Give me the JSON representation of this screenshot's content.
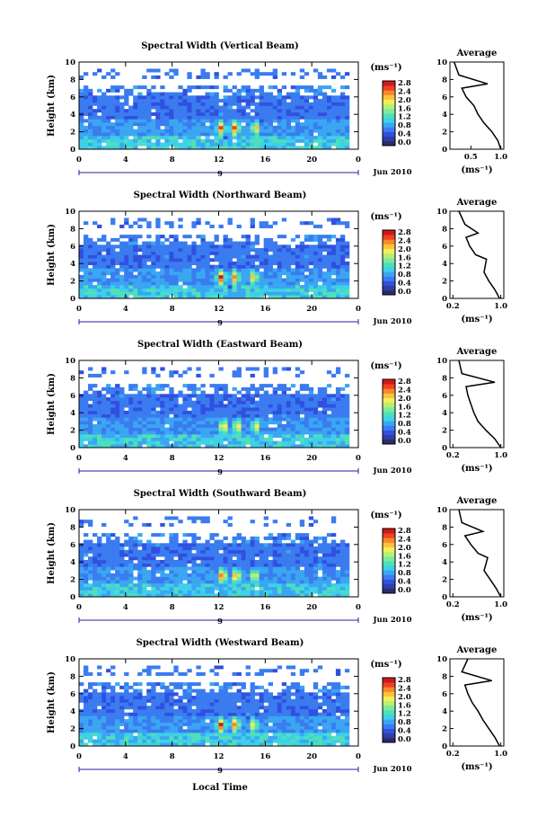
{
  "colors": {
    "colorbar": [
      "#2a2a6e",
      "#2f3fa0",
      "#3050e0",
      "#3a7cf0",
      "#3aa6f2",
      "#3ed0e8",
      "#4ee0b8",
      "#7ceaa0",
      "#b8f070",
      "#f2ee5a",
      "#fcc23a",
      "#f9882a",
      "#ef4222",
      "#d01818"
    ],
    "background": "#ffffff"
  },
  "colorbar": {
    "unit": "(ms⁻¹)",
    "ticks": [
      "0.0",
      "0.4",
      "0.8",
      "1.2",
      "1.6",
      "2.0",
      "2.4",
      "2.8"
    ]
  },
  "xaxis": {
    "ticks": [
      "0",
      "4",
      "8",
      "12",
      "16",
      "20",
      "0"
    ],
    "day_label": "9",
    "date_label": "Jun 2010",
    "label": "Local Time"
  },
  "yaxis": {
    "label": "Height (km)",
    "ticks": [
      "0",
      "2",
      "4",
      "6",
      "8",
      "10"
    ]
  },
  "avg_panel": {
    "title": "Average",
    "xlabel": "(ms⁻¹)",
    "ticks_y": [
      "0",
      "2",
      "4",
      "6",
      "8",
      "10"
    ]
  },
  "chart_data": [
    {
      "type": "heatmap",
      "title": "Spectral Width (Vertical Beam)",
      "xlabel": "",
      "ylabel": "Height (km)",
      "xlim": [
        0,
        24
      ],
      "ylim": [
        0,
        10
      ],
      "zlim": [
        0,
        2.8
      ],
      "hotspots": [
        {
          "x": 12.2,
          "z": 2.6
        },
        {
          "x": 13.4,
          "z": 2.8
        },
        {
          "x": 15.2,
          "z": 2.4
        }
      ],
      "average": {
        "x_ticks": [
          "0.5",
          "1.0"
        ],
        "x": [
          1.0,
          0.95,
          0.85,
          0.72,
          0.62,
          0.55,
          0.42,
          0.35,
          0.78,
          0.3,
          0.22
        ],
        "y": [
          0,
          1,
          2,
          3,
          4,
          5,
          6,
          7,
          7.5,
          8.5,
          10
        ]
      }
    },
    {
      "type": "heatmap",
      "title": "Spectral Width (Northward Beam)",
      "xlabel": "",
      "ylabel": "Height (km)",
      "xlim": [
        0,
        24
      ],
      "ylim": [
        0,
        10
      ],
      "zlim": [
        0,
        2.8
      ],
      "hotspots": [
        {
          "x": 12.2,
          "z": 2.8
        },
        {
          "x": 13.4,
          "z": 2.6
        },
        {
          "x": 15.0,
          "z": 2.4
        }
      ],
      "average": {
        "x_ticks": [
          "0.2",
          "1.0"
        ],
        "x": [
          0.98,
          0.9,
          0.8,
          0.72,
          0.76,
          0.58,
          0.48,
          0.42,
          0.62,
          0.4,
          0.3
        ],
        "y": [
          0,
          1,
          2,
          3,
          4.5,
          5,
          6,
          7,
          7.5,
          8.5,
          10
        ]
      }
    },
    {
      "type": "heatmap",
      "title": "Spectral Width (Eastward Beam)",
      "xlabel": "",
      "ylabel": "Height (km)",
      "xlim": [
        0,
        24
      ],
      "ylim": [
        0,
        10
      ],
      "zlim": [
        0,
        2.8
      ],
      "hotspots": [
        {
          "x": 12.4,
          "z": 2.6
        },
        {
          "x": 13.6,
          "z": 2.4
        },
        {
          "x": 15.2,
          "z": 2.2
        }
      ],
      "average": {
        "x_ticks": [
          "0.2",
          "1.0"
        ],
        "x": [
          1.0,
          0.9,
          0.75,
          0.62,
          0.55,
          0.5,
          0.45,
          0.42,
          0.9,
          0.35,
          0.3
        ],
        "y": [
          0,
          1,
          2,
          3,
          4,
          5,
          6,
          7,
          7.5,
          8.5,
          10
        ]
      }
    },
    {
      "type": "heatmap",
      "title": "Spectral Width (Southward Beam)",
      "xlabel": "",
      "ylabel": "Height (km)",
      "xlim": [
        0,
        24
      ],
      "ylim": [
        0,
        10
      ],
      "zlim": [
        0,
        2.8
      ],
      "hotspots": [
        {
          "x": 12.3,
          "z": 2.8
        },
        {
          "x": 13.5,
          "z": 2.7
        },
        {
          "x": 15.1,
          "z": 2.3
        }
      ],
      "average": {
        "x_ticks": [
          "0.2",
          "1.0"
        ],
        "x": [
          1.0,
          0.92,
          0.82,
          0.72,
          0.78,
          0.62,
          0.5,
          0.4,
          0.7,
          0.35,
          0.3
        ],
        "y": [
          0,
          1,
          2,
          3,
          4.5,
          5,
          6,
          7,
          7.5,
          8.5,
          10
        ]
      }
    },
    {
      "type": "heatmap",
      "title": "Spectral Width (Westward Beam)",
      "xlabel": "Local Time",
      "ylabel": "Height (km)",
      "xlim": [
        0,
        24
      ],
      "ylim": [
        0,
        10
      ],
      "zlim": [
        0,
        2.8
      ],
      "hotspots": [
        {
          "x": 12.2,
          "z": 2.8
        },
        {
          "x": 13.4,
          "z": 2.7
        },
        {
          "x": 15.0,
          "z": 2.3
        }
      ],
      "average": {
        "x_ticks": [
          "0.2",
          "1.0"
        ],
        "x": [
          0.98,
          0.9,
          0.8,
          0.7,
          0.62,
          0.52,
          0.45,
          0.4,
          0.85,
          0.35,
          0.45
        ],
        "y": [
          0,
          1,
          2,
          3,
          4,
          5,
          6,
          7,
          7.5,
          8.5,
          10
        ]
      }
    }
  ]
}
